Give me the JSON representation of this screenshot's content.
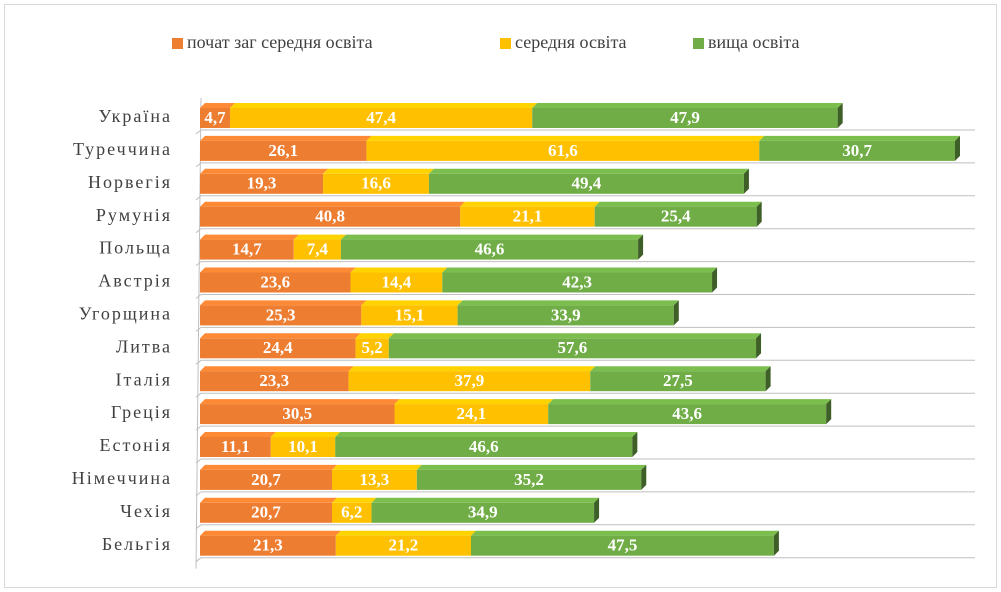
{
  "chart_data": {
    "type": "stacked-bar-horizontal",
    "categories": [
      "Україна",
      "Туреччина",
      "Норвегія",
      "Румунія",
      "Польща",
      "Австрія",
      "Угорщина",
      "Литва",
      "Італія",
      "Греція",
      "Естонія",
      "Німеччина",
      "Чехія",
      "Бельгія"
    ],
    "legend": "top",
    "series": [
      {
        "name": "почат заг середня освіта",
        "color": "#ed7d31",
        "values": [
          4.7,
          26.1,
          19.3,
          40.8,
          14.7,
          23.6,
          25.3,
          24.4,
          23.3,
          30.5,
          11.1,
          20.7,
          20.7,
          21.3
        ],
        "value_labels": [
          "4,7",
          "26,1",
          "19,3",
          "40,8",
          "14,7",
          "23,6",
          "25,3",
          "24,4",
          "23,3",
          "30,5",
          "11,1",
          "20,7",
          "20,7",
          "21,3"
        ]
      },
      {
        "name": "середня освіта",
        "color": "#ffc000",
        "values": [
          47.4,
          61.6,
          16.6,
          21.1,
          7.4,
          14.4,
          15.1,
          5.2,
          37.9,
          24.1,
          10.1,
          13.3,
          6.2,
          21.2
        ],
        "value_labels": [
          "47,4",
          "61,6",
          "16,6",
          "21,1",
          "7,4",
          "14,4",
          "15,1",
          "5,2",
          "37,9",
          "24,1",
          "10,1",
          "13,3",
          "6,2",
          "21,2"
        ]
      },
      {
        "name": "вища освіта",
        "color": "#70ad47",
        "values": [
          47.9,
          30.7,
          49.4,
          25.4,
          46.6,
          42.3,
          33.9,
          57.6,
          27.5,
          43.6,
          46.6,
          35.2,
          34.9,
          47.5
        ],
        "value_labels": [
          "47,9",
          "30,7",
          "49,4",
          "25,4",
          "46,6",
          "42,3",
          "33,9",
          "57,6",
          "27,5",
          "43,6",
          "46,6",
          "35,2",
          "34,9",
          "47,5"
        ]
      }
    ]
  }
}
